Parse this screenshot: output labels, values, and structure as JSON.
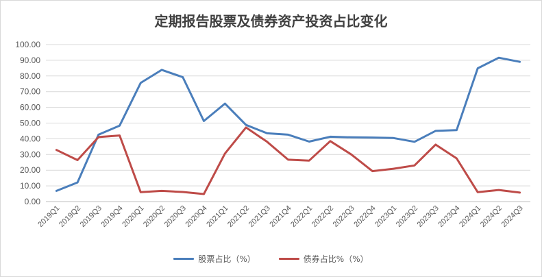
{
  "chart_data": {
    "type": "line",
    "title": "定期报告股票及债券资产投资占比变化",
    "xlabel": "",
    "ylabel": "",
    "ylim": [
      0,
      100
    ],
    "ytick_labels": [
      "0.00",
      "10.00",
      "20.00",
      "30.00",
      "40.00",
      "50.00",
      "60.00",
      "70.00",
      "80.00",
      "90.00",
      "100.00"
    ],
    "grid": true,
    "legend_position": "bottom",
    "categories": [
      "2019Q1",
      "2019Q2",
      "2019Q3",
      "2019Q4",
      "2020Q1",
      "2020Q2",
      "2020Q3",
      "2020Q4",
      "2021Q1",
      "2021Q2",
      "2021Q3",
      "2021Q4",
      "2022Q1",
      "2022Q2",
      "2022Q3",
      "2022Q4",
      "2023Q1",
      "2023Q2",
      "2023Q3",
      "2023Q4",
      "2024Q1",
      "2024Q2",
      "2024Q3"
    ],
    "series": [
      {
        "name": "股票占比（%）",
        "color": "#4a7ebb",
        "values": [
          6.8,
          12.2,
          42.6,
          48.4,
          75.6,
          83.9,
          79.2,
          51.3,
          62.4,
          48.8,
          43.5,
          42.6,
          38.2,
          41.3,
          40.9,
          40.8,
          40.5,
          38.1,
          45.0,
          45.5,
          84.9,
          91.6,
          89.0
        ]
      },
      {
        "name": "债券占比%（%）",
        "color": "#be4b48",
        "values": [
          32.9,
          26.4,
          41.1,
          42.1,
          6.0,
          6.8,
          6.1,
          4.8,
          30.6,
          47.2,
          38.1,
          26.7,
          26.1,
          38.5,
          30.0,
          19.4,
          20.9,
          23.0,
          36.3,
          27.5,
          6.0,
          7.4,
          5.7
        ]
      }
    ]
  }
}
